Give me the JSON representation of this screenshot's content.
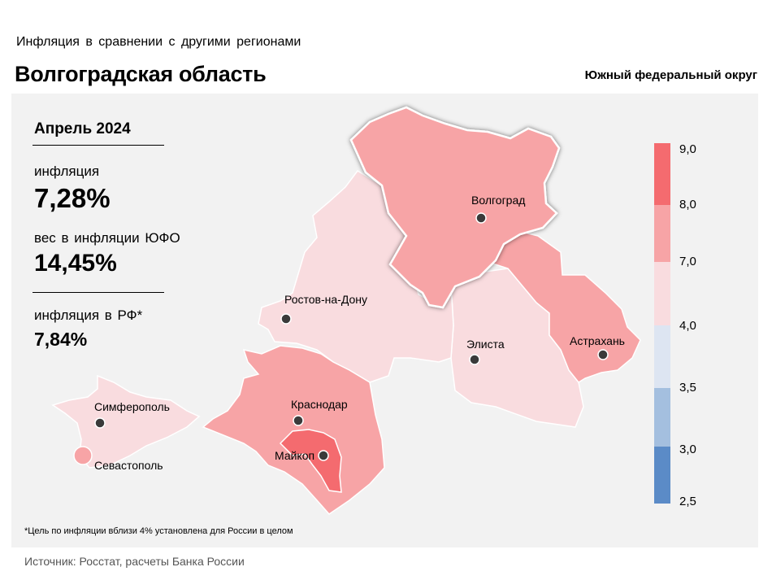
{
  "header": {
    "subtitle": "Инфляция  в сравнении  с другими  регионами",
    "title": "Волгоградская область",
    "district": "Южный федеральный округ"
  },
  "stats": {
    "period": "Апрель 2024",
    "inflation_label": "инфляция",
    "inflation_value": "7,28%",
    "weight_label": "вес в инфляции  ЮФО",
    "weight_value": "14,45%",
    "rf_label": "инфляция  в РФ*",
    "rf_value": "7,84%"
  },
  "cities": {
    "volgograd": "Волгоград",
    "rostov": "Ростов-на-Дону",
    "elista": "Элиста",
    "astrakhan": "Астрахань",
    "simferopol": "Симферополь",
    "krasnodar": "Краснодар",
    "maykop": "Майкоп",
    "sevastopol": "Севастополь"
  },
  "legend": {
    "ticks": [
      "9,0",
      "8,0",
      "7,0",
      "4,0",
      "3,5",
      "3,0",
      "2,5"
    ],
    "colors": {
      "bin_8_9": "#f46b6f",
      "bin_7_8": "#f7a4a6",
      "bin_4_7": "#f9dcdf",
      "bin_35_4": "#dde5f2",
      "bin_3_35": "#a4bfdf",
      "bin_25_3": "#5b8bc7"
    }
  },
  "footnote": "*Цель по инфляции вблизи 4% установлена для России в целом",
  "source": "Источник: Росстат, расчеты Банка России"
}
